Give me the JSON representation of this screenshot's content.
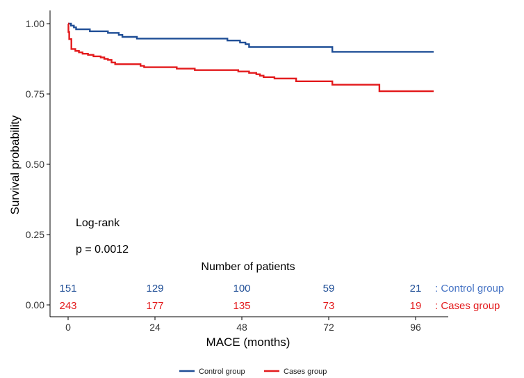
{
  "chart_data": {
    "type": "line",
    "step": true,
    "xlabel": "MACE (months)",
    "ylabel": "Survival probability",
    "xlim": [
      0,
      101
    ],
    "ylim": [
      0,
      1
    ],
    "x_ticks": [
      0,
      24,
      48,
      72,
      96
    ],
    "y_ticks": [
      0.0,
      0.25,
      0.5,
      0.75,
      1.0
    ],
    "y_tick_labels": [
      "0.00",
      "0.25",
      "0.50",
      "0.75",
      "1.00"
    ],
    "grid": false,
    "legend_position": "bottom",
    "series": [
      {
        "name": "Control group",
        "color": "#1f4e96",
        "points": [
          [
            0,
            1.0
          ],
          [
            0.8,
            0.993
          ],
          [
            1.6,
            0.987
          ],
          [
            2.2,
            0.98
          ],
          [
            6,
            0.973
          ],
          [
            11,
            0.967
          ],
          [
            14,
            0.96
          ],
          [
            15,
            0.953
          ],
          [
            19,
            0.947
          ],
          [
            44,
            0.94
          ],
          [
            47.5,
            0.933
          ],
          [
            49,
            0.927
          ],
          [
            50,
            0.917
          ],
          [
            73,
            0.9
          ],
          [
            101,
            0.9
          ]
        ]
      },
      {
        "name": "Cases group",
        "color": "#e31a1c",
        "points": [
          [
            0,
            1.0
          ],
          [
            0.1,
            0.97
          ],
          [
            0.3,
            0.945
          ],
          [
            0.9,
            0.91
          ],
          [
            2,
            0.903
          ],
          [
            3,
            0.898
          ],
          [
            4,
            0.893
          ],
          [
            5.5,
            0.889
          ],
          [
            7,
            0.884
          ],
          [
            9,
            0.88
          ],
          [
            10,
            0.875
          ],
          [
            11,
            0.871
          ],
          [
            12,
            0.862
          ],
          [
            13,
            0.856
          ],
          [
            20,
            0.85
          ],
          [
            21,
            0.845
          ],
          [
            30,
            0.84
          ],
          [
            35,
            0.835
          ],
          [
            47,
            0.83
          ],
          [
            50,
            0.825
          ],
          [
            52,
            0.82
          ],
          [
            53,
            0.815
          ],
          [
            54,
            0.81
          ],
          [
            57,
            0.805
          ],
          [
            63,
            0.795
          ],
          [
            73,
            0.783
          ],
          [
            86,
            0.76
          ],
          [
            101,
            0.76
          ]
        ]
      }
    ],
    "annotations": {
      "test_name": "Log-rank",
      "p_value": "p = 0.0012"
    },
    "risk_table": {
      "title": "Number of patients",
      "times": [
        0,
        24,
        48,
        72,
        96
      ],
      "rows": [
        {
          "label": ": Control group",
          "color": "#1f4e96",
          "label_color": "#4472c4",
          "values": [
            "151",
            "129",
            "100",
            "59",
            "21"
          ]
        },
        {
          "label": ": Cases group",
          "color": "#e31a1c",
          "label_color": "#e31a1c",
          "values": [
            "243",
            "177",
            "135",
            "73",
            "19"
          ]
        }
      ]
    }
  }
}
